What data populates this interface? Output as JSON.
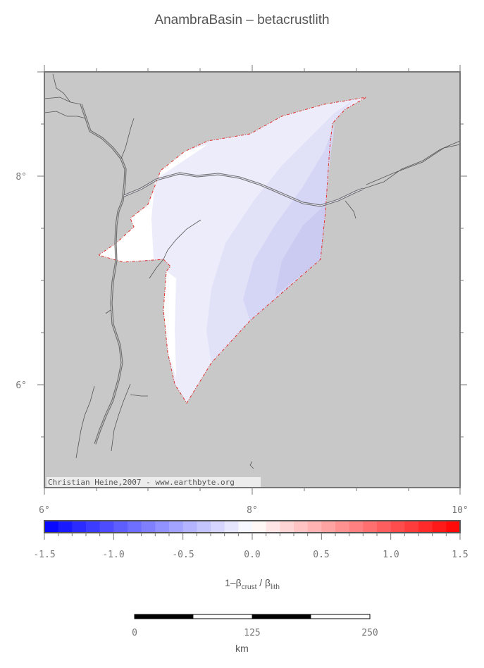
{
  "title": "AnambraBasin – betacrustlith",
  "map": {
    "x_ticks": [
      "6°",
      "8°",
      "10°"
    ],
    "y_ticks": [
      "8°",
      "6°"
    ],
    "credit": "Christian Heine,2007 - www.earthbyte.org",
    "colors": {
      "land": "#c8c8c8",
      "basin_outline": "#e0302a",
      "rivers": "#555555"
    }
  },
  "colorbar": {
    "ticks": [
      "-1.5",
      "-1.0",
      "-0.5",
      "0.0",
      "0.5",
      "1.0",
      "1.5"
    ],
    "label_main": "1–β",
    "label_sub1": "crust",
    "label_mid": " / β",
    "label_sub2": "lith",
    "range": [
      -1.5,
      1.5
    ]
  },
  "scalebar": {
    "ticks": [
      "0",
      "125",
      "250"
    ],
    "unit": "km"
  }
}
